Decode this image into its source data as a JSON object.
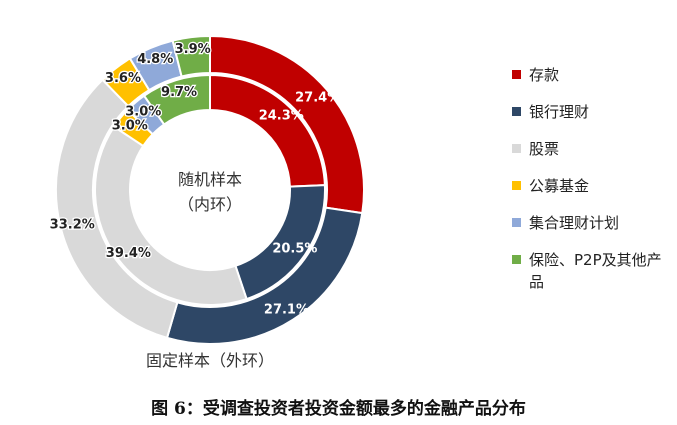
{
  "chart_data": {
    "type": "donut",
    "series": [
      {
        "name": "固定样本（外环）",
        "values": [
          27.4,
          27.1,
          33.2,
          3.6,
          4.8,
          3.9
        ],
        "labels": [
          "27.4%",
          "27.1%",
          "33.2%",
          "3.6%",
          "4.8%",
          "3.9%"
        ]
      },
      {
        "name": "随机样本（内环）",
        "values": [
          24.3,
          20.5,
          39.4,
          3.0,
          3.0,
          9.7
        ],
        "labels": [
          "24.3%",
          "20.5%",
          "39.4%",
          "3.0%",
          "3.0%",
          "9.7%"
        ]
      }
    ],
    "categories": [
      "存款",
      "银行理财",
      "股票",
      "公募基金",
      "集合理财计划",
      "保险、P2P及其他产品"
    ],
    "colors": [
      "#c00000",
      "#2e4766",
      "#d9d9d9",
      "#ffc000",
      "#8fa9d9",
      "#70ad47"
    ],
    "center_label": [
      "随机样本",
      "（内环）"
    ],
    "outer_label": "固定样本（外环）",
    "legend_position": "right"
  },
  "legend": {
    "items": [
      "存款",
      "银行理财",
      "股票",
      "公募基金",
      "集合理财计划",
      "保险、P2P及其他产品"
    ]
  },
  "caption": "图 6：受调查投资者投资金额最多的金融产品分布"
}
